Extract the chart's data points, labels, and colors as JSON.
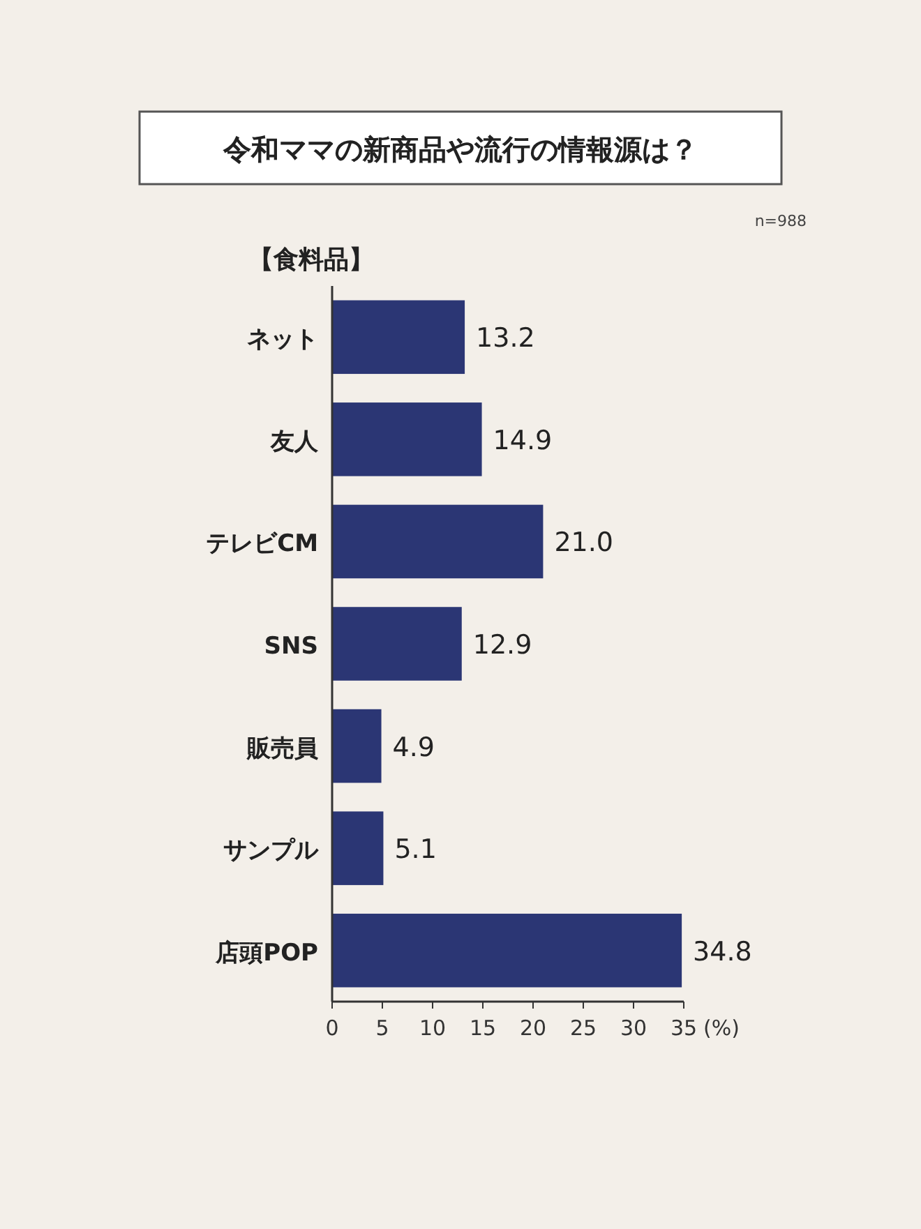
{
  "chart_data": {
    "type": "bar",
    "orientation": "horizontal",
    "title": "令和ママの新商品や流行の情報源は？",
    "subtitle": "【食料品】",
    "annotations": [
      "n=988"
    ],
    "categories": [
      "ネット",
      "友人",
      "テレビCM",
      "SNS",
      "販売員",
      "サンプル",
      "店頭POP"
    ],
    "values": [
      13.2,
      14.9,
      21.0,
      12.9,
      4.9,
      5.1,
      34.8
    ],
    "value_labels": [
      "13.2",
      "14.9",
      "21.0",
      "12.9",
      "4.9",
      "5.1",
      "34.8"
    ],
    "color": "#2b3674",
    "xlim": [
      0,
      35
    ],
    "xticks": [
      0,
      5,
      10,
      15,
      20,
      25,
      30,
      35
    ],
    "xlabel": "(%)",
    "grid": false
  }
}
